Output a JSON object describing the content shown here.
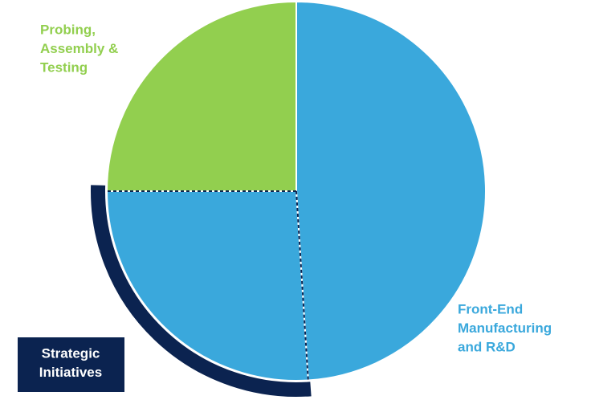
{
  "chart_data": {
    "type": "pie",
    "categories": [
      [
        "Front-End",
        "Manufacturing",
        "and R&D"
      ],
      [
        "Strategic",
        "Initiatives"
      ],
      [
        "Probing,",
        "Assembly &",
        "Testing"
      ]
    ],
    "values": [
      49,
      26,
      25
    ],
    "colors": [
      "#3aa8dc",
      "#3aa8dc",
      "#92cf4f"
    ]
  }
}
